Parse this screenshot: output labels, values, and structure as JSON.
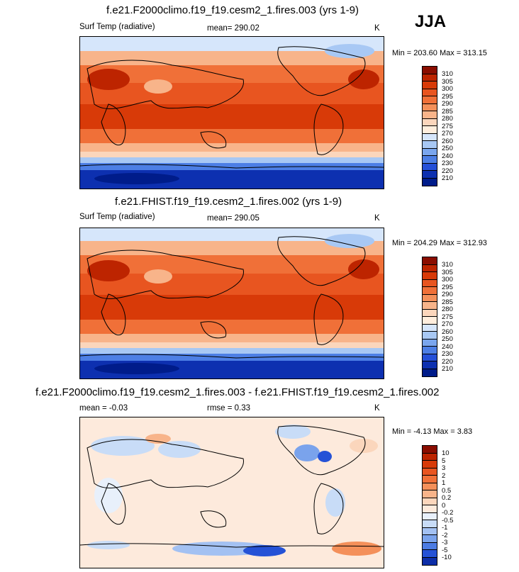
{
  "season": "JJA",
  "panels": [
    {
      "title": "f.e21.F2000climo.f19_f19.cesm2_1.fires.003 (yrs 1-9)",
      "left_label": "Surf Temp (radiative)",
      "mid_label": "mean= 290.02",
      "right_label": "K",
      "minmax": "Min = 203.60 Max = 313.15",
      "scale": "abs",
      "levels": [
        "310",
        "305",
        "300",
        "295",
        "290",
        "285",
        "280",
        "275",
        "270",
        "260",
        "250",
        "240",
        "230",
        "220",
        "210"
      ]
    },
    {
      "title": "f.e21.FHIST.f19_f19.cesm2_1.fires.002 (yrs 1-9)",
      "left_label": "Surf Temp (radiative)",
      "mid_label": "mean= 290.05",
      "right_label": "K",
      "minmax": "Min = 204.29 Max = 312.93",
      "scale": "abs",
      "levels": [
        "310",
        "305",
        "300",
        "295",
        "290",
        "285",
        "280",
        "275",
        "270",
        "260",
        "250",
        "240",
        "230",
        "220",
        "210"
      ]
    },
    {
      "title": "f.e21.F2000climo.f19_f19.cesm2_1.fires.003 - f.e21.FHIST.f19_f19.cesm2_1.fires.002",
      "left_label": "mean =  -0.03",
      "mid_label": "rmse =   0.33",
      "right_label": "K",
      "minmax": "Min =  -4.13 Max =   3.83",
      "scale": "diff",
      "levels": [
        "10",
        "5",
        "3",
        "2",
        "1",
        "0.5",
        "0.2",
        "0",
        "-0.2",
        "-0.5",
        "-1",
        "-2",
        "-3",
        "-5",
        "-10"
      ]
    }
  ],
  "colors": {
    "abs": [
      "#8a0d00",
      "#bd2400",
      "#d83a08",
      "#e85520",
      "#f07038",
      "#f4905a",
      "#f8b48a",
      "#fbd6bc",
      "#ffeedd",
      "#d6e6fb",
      "#a8c8f4",
      "#7aa6ee",
      "#4d7fe5",
      "#2550d8",
      "#0d30b0",
      "#001c8a"
    ],
    "diff": [
      "#8a0d00",
      "#bd2400",
      "#d83a08",
      "#e85520",
      "#f07038",
      "#f4905a",
      "#f8b48a",
      "#fbd6bc",
      "#fdeadc",
      "#e8f0fb",
      "#c8dcf7",
      "#a3c1f2",
      "#7aa3ec",
      "#4c7ce3",
      "#2552d6",
      "#0d2ea8"
    ]
  }
}
